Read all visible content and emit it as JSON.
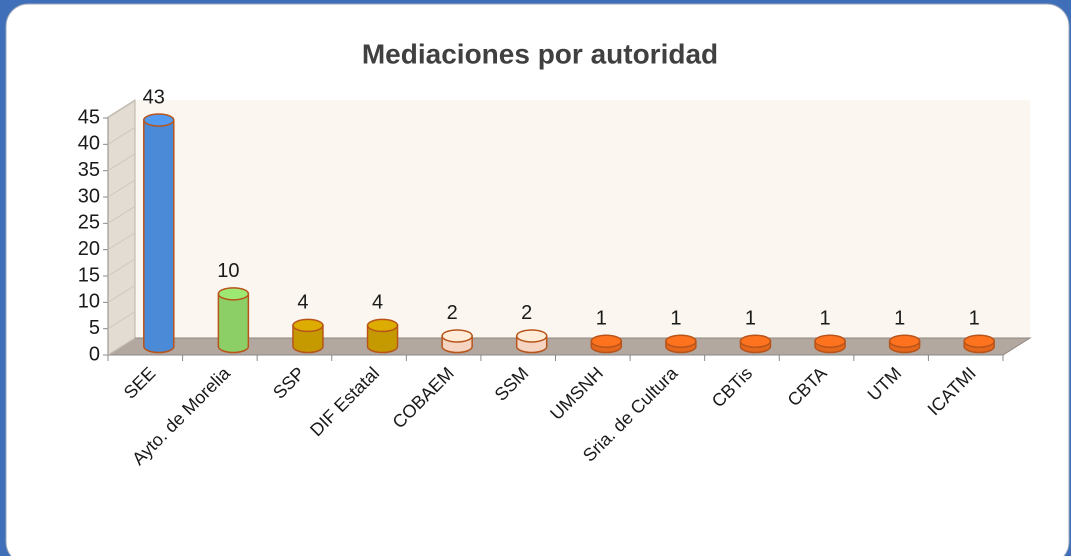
{
  "chart_data": {
    "type": "bar3d",
    "title": "Mediaciones por autoridad",
    "categories": [
      "SEE",
      "Ayto. de Morelia",
      "SSP",
      "DIF Estatal",
      "COBAEM",
      "SSM",
      "UMSNH",
      "Sria. de Cultura",
      "CBTis",
      "CBTA",
      "UTM",
      "ICATMI"
    ],
    "values": [
      43,
      10,
      4,
      4,
      2,
      2,
      1,
      1,
      1,
      1,
      1,
      1
    ],
    "colors": [
      "#4a8ad6",
      "#8ccf66",
      "#c49a00",
      "#c49a00",
      "#f6d4c2",
      "#f6d4c2",
      "#e4671c",
      "#e4671c",
      "#e4671c",
      "#e4671c",
      "#e4671c",
      "#e4671c"
    ],
    "ylim": [
      0,
      45
    ],
    "yticks": [
      0,
      5,
      10,
      15,
      20,
      25,
      30,
      35,
      40,
      45
    ]
  }
}
